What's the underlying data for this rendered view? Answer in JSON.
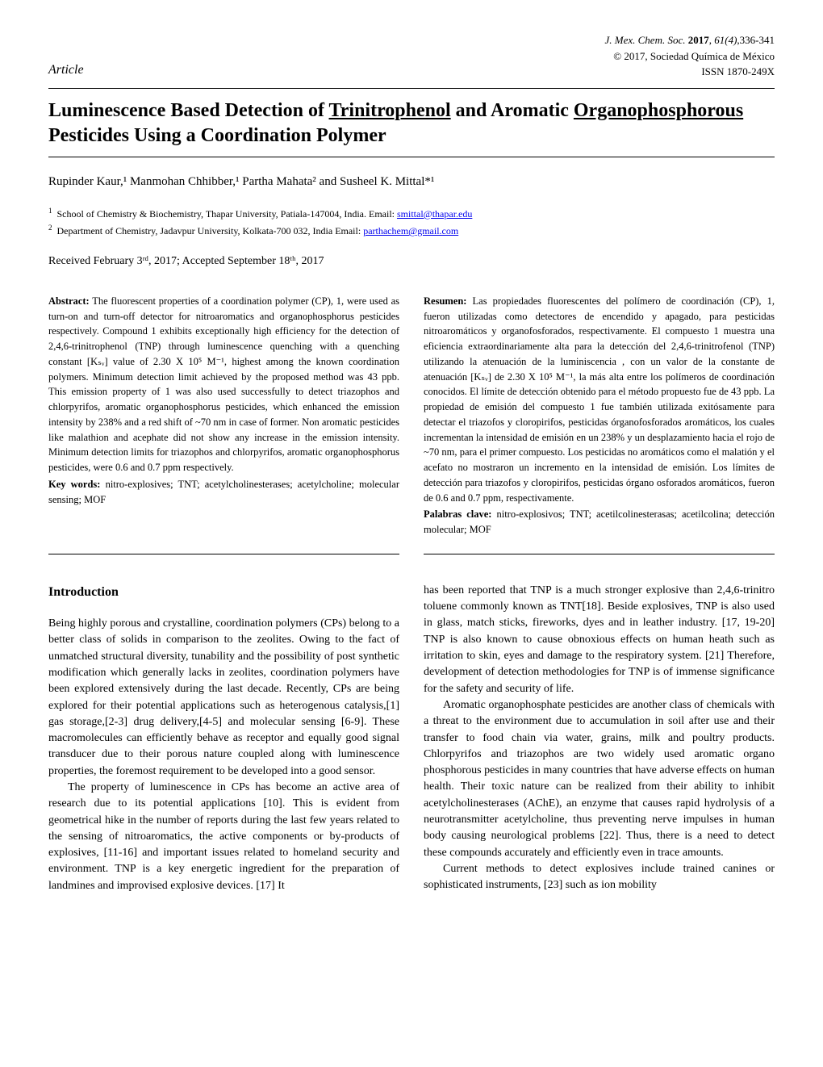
{
  "header": {
    "article_label": "Article",
    "journal_name": "J. Mex. Chem. Soc.",
    "journal_year": "2017",
    "journal_issue": "61(4)",
    "journal_pages": "336-341",
    "copyright": "© 2017, Sociedad Química de México",
    "issn": "ISSN 1870-249X"
  },
  "title": {
    "part1": "Luminescence Based Detection of ",
    "underlined1": "Trinitrophenol",
    "part2": " and Aromatic ",
    "underlined2": "Organophosphorous",
    "part3": " Pesticides Using a Coordination Polymer"
  },
  "authors": "Rupinder Kaur,¹ Manmohan Chhibber,¹ Partha Mahata² and Susheel K. Mittal*¹",
  "affiliations": [
    {
      "num": "1",
      "text": "School of Chemistry & Biochemistry, Thapar University, Patiala-147004, India. Email: ",
      "email": "smittal@thapar.edu"
    },
    {
      "num": "2",
      "text": "Department of Chemistry, Jadavpur University, Kolkata-700 032, India Email: ",
      "email": "parthachem@gmail.com"
    }
  ],
  "dates": "Received February 3ʳᵈ, 2017; Accepted September 18ᵗʰ, 2017",
  "abstract_en": {
    "label": "Abstract:",
    "text": " The fluorescent properties of a coordination polymer (CP), 1, were used as turn-on and turn-off detector for nitroaromatics and organophosphorus pesticides respectively. Compound 1 exhibits exceptionally high efficiency for the detection of 2,4,6-trinitrophenol (TNP) through luminescence quenching with a quenching constant [Kₛᵥ] value of 2.30 X 10⁵ M⁻¹, highest among the known coordination polymers. Minimum detection limit achieved by the proposed method was 43 ppb. This emission property of 1 was also used successfully to detect triazophos and chlorpyrifos, aromatic organophosphorus pesticides, which enhanced the emission intensity by 238% and a red shift of ~70 nm in case of former. Non aromatic pesticides like malathion and acephate did not show any increase in the emission intensity. Minimum detection limits for triazophos and chlorpyrifos, aromatic organophosphorus pesticides, were 0.6 and 0.7 ppm respectively.",
    "keywords_label": "Key words:",
    "keywords": " nitro-explosives; TNT; acetylcholinesterases; acetylcholine; molecular sensing; MOF"
  },
  "abstract_es": {
    "label": "Resumen:",
    "text": " Las propiedades fluorescentes del polímero de coordinación (CP), 1, fueron utilizadas como detectores de encendido y apagado, para pesticidas nitroaromáticos y organofosforados, respectivamente. El compuesto 1 muestra una eficiencia extraordinariamente alta para la detección del 2,4,6-trinitrofenol (TNP) utilizando la atenuación de la luminiscencia , con un valor de la constante de atenuación [Kₛᵥ] de 2.30 X 10⁵ M⁻¹, la más alta entre los polímeros de coordinación conocidos. El límite de detección obtenido para el método propuesto fue de 43 ppb. La propiedad de emisión del compuesto 1 fue también utilizada exitósamente para detectar el triazofos y cloropirifos, pesticidas órganofosforados aromáticos, los cuales incrementan la intensidad de emisión en un 238% y un desplazamiento hacia el rojo de ~70 nm, para el primer compuesto. Los pesticidas no aromáticos como el malatión y el acefato no mostraron un incremento en la intensidad de emisión. Los límites de detección para triazofos y cloropirifos, pesticidas órgano osforados aromáticos, fueron de 0.6 and 0.7 ppm, respectivamente.",
    "keywords_label": "Palabras clave:",
    "keywords": " nitro-explosivos; TNT; acetilcolinesterasas; acetilcolina; detección molecular; MOF"
  },
  "introduction": {
    "heading": "Introduction",
    "left_para1": "Being highly porous and crystalline, coordination polymers (CPs) belong to a better class of solids in comparison to the zeolites. Owing to the fact of unmatched structural diversity, tunability and the possibility of post synthetic modification which generally lacks in zeolites, coordination polymers have been explored extensively during the last decade. Recently, CPs are being explored for their potential applications such as heterogenous catalysis,[1] gas storage,[2-3] drug delivery,[4-5] and molecular sensing [6-9]. These macromolecules can efficiently behave as receptor and equally good signal transducer due to their porous nature coupled along with luminescence properties, the foremost requirement to be developed into a good sensor.",
    "left_para2": "The property of luminescence in CPs has become an active area of research due to its potential applications [10]. This is evident from geometrical hike in the number of reports during the last few years related to the sensing of nitroaromatics, the active components or by-products of explosives, [11-16] and important issues related to homeland security and environment. TNP is a key energetic ingredient for the preparation of landmines and improvised explosive devices. [17] It",
    "right_para1": "has been reported that TNP is a much stronger explosive than 2,4,6-trinitro toluene commonly known as TNT[18]. Beside explosives, TNP is also used in glass, match sticks, fireworks, dyes and in leather industry. [17, 19-20] TNP is also known to cause obnoxious effects on human heath such as irritation to skin, eyes and damage to the respiratory system. [21] Therefore, development of detection methodologies for TNP is of immense significance for the safety and security of life.",
    "right_para2": "Aromatic organophosphate pesticides are another class of chemicals with a threat to the environment due to accumulation in soil after use and their transfer to food chain via water, grains, milk and poultry products. Chlorpyrifos and triazophos are two widely used aromatic organo phosphorous pesticides in many countries that have adverse effects on human health. Their toxic nature can be realized from their ability to inhibit acetylcholinesterases (AChE), an enzyme that causes rapid hydrolysis of a neurotransmitter acetylcholine, thus preventing nerve impulses in human body causing neurological problems [22]. Thus, there is a need to detect these compounds accurately and efficiently even in trace amounts.",
    "right_para3": "Current methods to detect explosives include trained canines or sophisticated instruments, [23] such as ion mobility"
  }
}
